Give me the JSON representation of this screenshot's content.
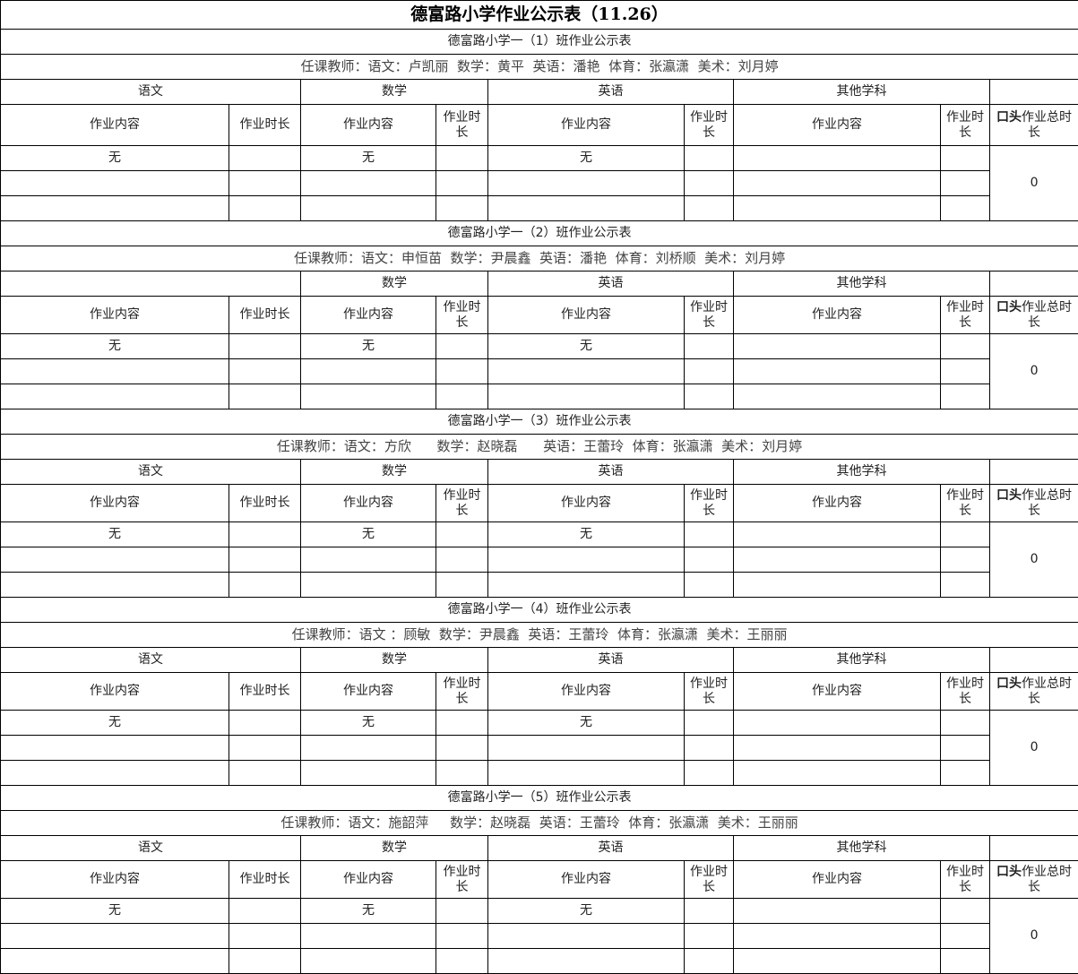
{
  "title": "德富路小学作业公示表（11.26）",
  "subjects": [
    "语文",
    "数学",
    "英语",
    "其他学科"
  ],
  "sub_headers": {
    "content": "作业内容",
    "duration": "作业时长",
    "duration_wrapped": "作业时长",
    "oral_total_bold": "口头",
    "oral_total_rest": "作业总时长"
  },
  "classes": [
    {
      "title": "德富路小学一（1）班作业公示表",
      "teachers": "任课教师：语文：卢凯丽  数学：黄平  英语：潘艳  体育：张瀛潇  美术：刘月婷",
      "show_chinese_header": true,
      "rows": [
        [
          "无",
          "",
          "无",
          "",
          "无",
          "",
          "",
          ""
        ],
        [
          "",
          "",
          "",
          "",
          "",
          "",
          "",
          ""
        ],
        [
          "",
          "",
          "",
          "",
          "",
          "",
          "",
          ""
        ]
      ],
      "oral_total": "0"
    },
    {
      "title": "德富路小学一（2）班作业公示表",
      "teachers": "任课教师：语文：申恒苗  数学：尹晨鑫  英语：潘艳  体育：刘桥顺  美术：刘月婷",
      "show_chinese_header": false,
      "rows": [
        [
          "无",
          "",
          "无",
          "",
          "无",
          "",
          "",
          ""
        ],
        [
          "",
          "",
          "",
          "",
          "",
          "",
          "",
          ""
        ],
        [
          "",
          "",
          "",
          "",
          "",
          "",
          "",
          ""
        ]
      ],
      "oral_total": "0"
    },
    {
      "title": "德富路小学一（3）班作业公示表",
      "teachers": "任课教师：语文：方欣      数学：赵晓磊      英语：王蕾玲  体育：张瀛潇  美术：刘月婷",
      "show_chinese_header": true,
      "rows": [
        [
          "无",
          "",
          "无",
          "",
          "无",
          "",
          "",
          ""
        ],
        [
          "",
          "",
          "",
          "",
          "",
          "",
          "",
          ""
        ],
        [
          "",
          "",
          "",
          "",
          "",
          "",
          "",
          ""
        ]
      ],
      "oral_total": "0"
    },
    {
      "title": "德富路小学一（4）班作业公示表",
      "teachers": "任课教师：语文 ：顾敏  数学：尹晨鑫  英语：王蕾玲  体育：张瀛潇  美术：王丽丽",
      "show_chinese_header": true,
      "rows": [
        [
          "无",
          "",
          "无",
          "",
          "无",
          "",
          "",
          ""
        ],
        [
          "",
          "",
          "",
          "",
          "",
          "",
          "",
          ""
        ],
        [
          "",
          "",
          "",
          "",
          "",
          "",
          "",
          ""
        ]
      ],
      "oral_total": "0"
    },
    {
      "title": "德富路小学一（5）班作业公示表",
      "teachers": "任课教师：语文：施韶萍     数学：赵晓磊  英语：王蕾玲  体育：张瀛潇  美术：王丽丽",
      "show_chinese_header": true,
      "rows": [
        [
          "无",
          "",
          "无",
          "",
          "无",
          "",
          "",
          ""
        ],
        [
          "",
          "",
          "",
          "",
          "",
          "",
          "",
          ""
        ],
        [
          "",
          "",
          "",
          "",
          "",
          "",
          "",
          ""
        ]
      ],
      "oral_total": "0"
    }
  ]
}
